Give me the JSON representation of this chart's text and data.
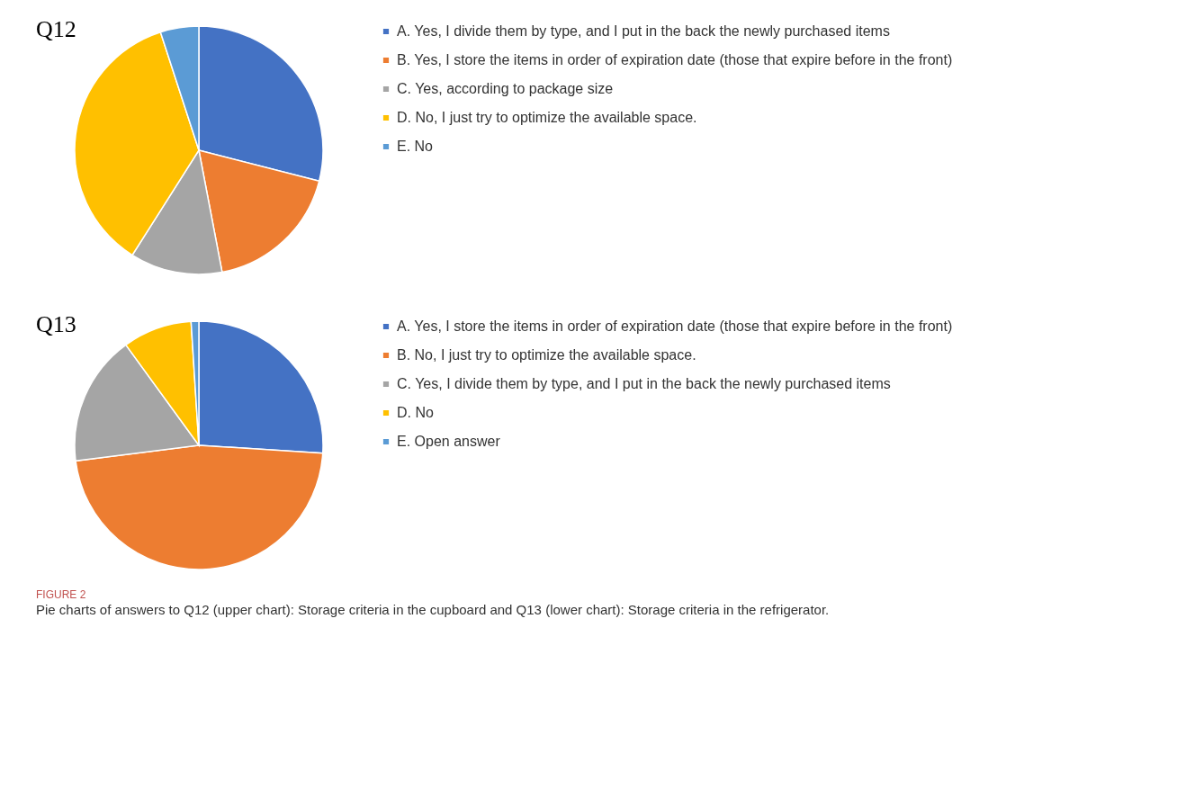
{
  "chart_data": [
    {
      "type": "pie",
      "title": "Q12",
      "legend": "right",
      "categories": [
        "A.   Yes, I divide them by type, and I put in the back the newly purchased items",
        "B.   Yes, I store the items in order of expiration date (those that expire before in the front)",
        "C.   Yes, according to package size",
        "D.    No, I just try to optimize the available space.",
        "E.    No"
      ],
      "values": [
        29,
        18,
        12,
        36,
        5
      ],
      "colors": [
        "#4472c4",
        "#ed7d31",
        "#a5a5a5",
        "#ffc000",
        "#5b9bd5"
      ]
    },
    {
      "type": "pie",
      "title": "Q13",
      "legend": "right",
      "categories": [
        "A.    Yes, I store the items in order of expiration date (those that expire before in the front)",
        "B.    No, I just try to optimize the available space.",
        "C.    Yes, I divide them by type, and I put in the back the newly purchased items",
        "D.     No",
        "E.    Open answer"
      ],
      "values": [
        26,
        47,
        17,
        9,
        1
      ],
      "colors": [
        "#4472c4",
        "#ed7d31",
        "#a5a5a5",
        "#ffc000",
        "#5b9bd5"
      ],
      "annotations": [
        "FIGURE 2",
        "Pie charts of answers to Q12 (upper chart): Storage criteria in the cupboard and Q13 (lower chart): Storage criteria in the refrigerator."
      ]
    }
  ]
}
